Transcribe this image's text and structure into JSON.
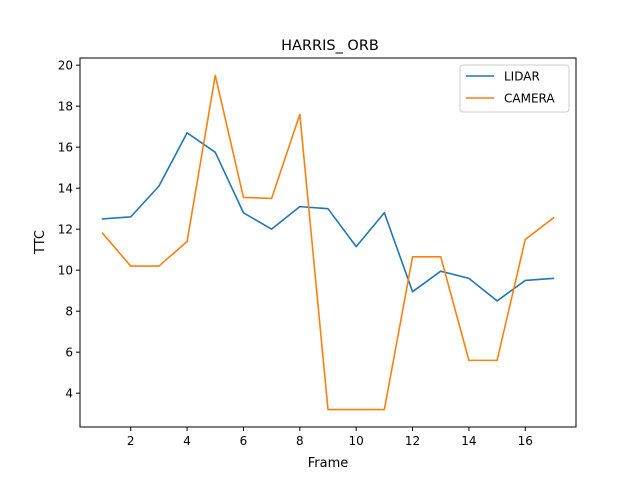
{
  "chart_data": {
    "type": "line",
    "title": "HARRIS_ ORB",
    "xlabel": "Frame",
    "ylabel": "TTC",
    "xlim": [
      0.2,
      17.8
    ],
    "ylim": [
      2.35,
      20.35
    ],
    "xticks": [
      2,
      4,
      6,
      8,
      10,
      12,
      14,
      16
    ],
    "yticks": [
      4,
      6,
      8,
      10,
      12,
      14,
      16,
      18,
      20
    ],
    "grid": false,
    "legend_position": "top-right",
    "x": [
      1,
      2,
      3,
      4,
      5,
      6,
      7,
      8,
      9,
      10,
      11,
      12,
      13,
      14,
      15,
      16,
      17
    ],
    "series": [
      {
        "name": "LIDAR",
        "color": "#1f77b4",
        "values": [
          12.5,
          12.6,
          14.1,
          16.7,
          15.75,
          12.8,
          12.0,
          13.1,
          13.0,
          11.15,
          12.8,
          8.95,
          9.95,
          9.6,
          8.5,
          9.5,
          9.6
        ]
      },
      {
        "name": "CAMERA",
        "color": "#ff7f0e",
        "values": [
          11.8,
          10.2,
          10.2,
          11.4,
          19.5,
          13.55,
          13.5,
          17.6,
          3.2,
          3.2,
          3.2,
          10.65,
          10.65,
          5.6,
          5.6,
          11.5,
          12.55
        ]
      }
    ]
  }
}
